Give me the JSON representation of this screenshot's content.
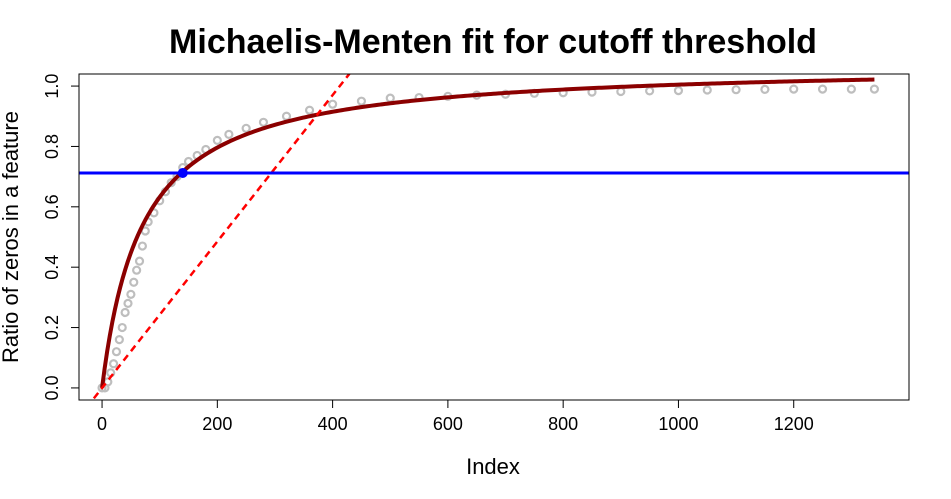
{
  "chart_data": {
    "type": "scatter",
    "title": "Michaelis-Menten fit for cutoff threshold",
    "xlabel": "Index",
    "ylabel": "Ratio of zeros in a feature",
    "xlim": [
      -40,
      1400
    ],
    "ylim": [
      -0.04,
      1.04
    ],
    "x_ticks": [
      0,
      200,
      400,
      600,
      800,
      1000,
      1200
    ],
    "y_ticks": [
      0.0,
      0.2,
      0.4,
      0.6,
      0.8,
      1.0
    ],
    "grid": false,
    "legend": "none",
    "series": [
      {
        "kind": "observed_points",
        "color": "#BEBEBE",
        "points": [
          [
            0,
            0.0
          ],
          [
            5,
            0.0
          ],
          [
            10,
            0.02
          ],
          [
            15,
            0.05
          ],
          [
            20,
            0.08
          ],
          [
            25,
            0.12
          ],
          [
            30,
            0.16
          ],
          [
            35,
            0.2
          ],
          [
            40,
            0.25
          ],
          [
            45,
            0.28
          ],
          [
            50,
            0.31
          ],
          [
            55,
            0.35
          ],
          [
            60,
            0.39
          ],
          [
            65,
            0.42
          ],
          [
            70,
            0.47
          ],
          [
            75,
            0.52
          ],
          [
            80,
            0.55
          ],
          [
            90,
            0.58
          ],
          [
            100,
            0.62
          ],
          [
            110,
            0.65
          ],
          [
            120,
            0.68
          ],
          [
            130,
            0.7
          ],
          [
            140,
            0.73
          ],
          [
            150,
            0.75
          ],
          [
            165,
            0.77
          ],
          [
            180,
            0.79
          ],
          [
            200,
            0.82
          ],
          [
            220,
            0.84
          ],
          [
            250,
            0.86
          ],
          [
            280,
            0.88
          ],
          [
            320,
            0.9
          ],
          [
            360,
            0.92
          ],
          [
            400,
            0.94
          ],
          [
            450,
            0.95
          ],
          [
            500,
            0.96
          ],
          [
            550,
            0.962
          ],
          [
            600,
            0.966
          ],
          [
            650,
            0.97
          ],
          [
            700,
            0.973
          ],
          [
            750,
            0.976
          ],
          [
            800,
            0.978
          ],
          [
            850,
            0.98
          ],
          [
            900,
            0.982
          ],
          [
            950,
            0.984
          ],
          [
            1000,
            0.985
          ],
          [
            1050,
            0.987
          ],
          [
            1100,
            0.988
          ],
          [
            1150,
            0.989
          ],
          [
            1200,
            0.99
          ],
          [
            1250,
            0.99
          ],
          [
            1300,
            0.99
          ],
          [
            1340,
            0.99
          ]
        ]
      },
      {
        "kind": "fitted_curve",
        "color": "#8B0000",
        "model": "y = Vmax * x / (Km + x)",
        "Vmax": 1.075,
        "Km": 70,
        "x_range": [
          0,
          1340
        ]
      },
      {
        "kind": "tangent_line",
        "color": "#FF0000",
        "style": "dashed",
        "slope": 0.002425,
        "intercept": 0.0
      },
      {
        "kind": "cutoff_line",
        "color": "#0000FF",
        "y": 0.712
      },
      {
        "kind": "cutoff_point",
        "color": "#0000FF",
        "x": 140,
        "y": 0.712
      }
    ]
  }
}
